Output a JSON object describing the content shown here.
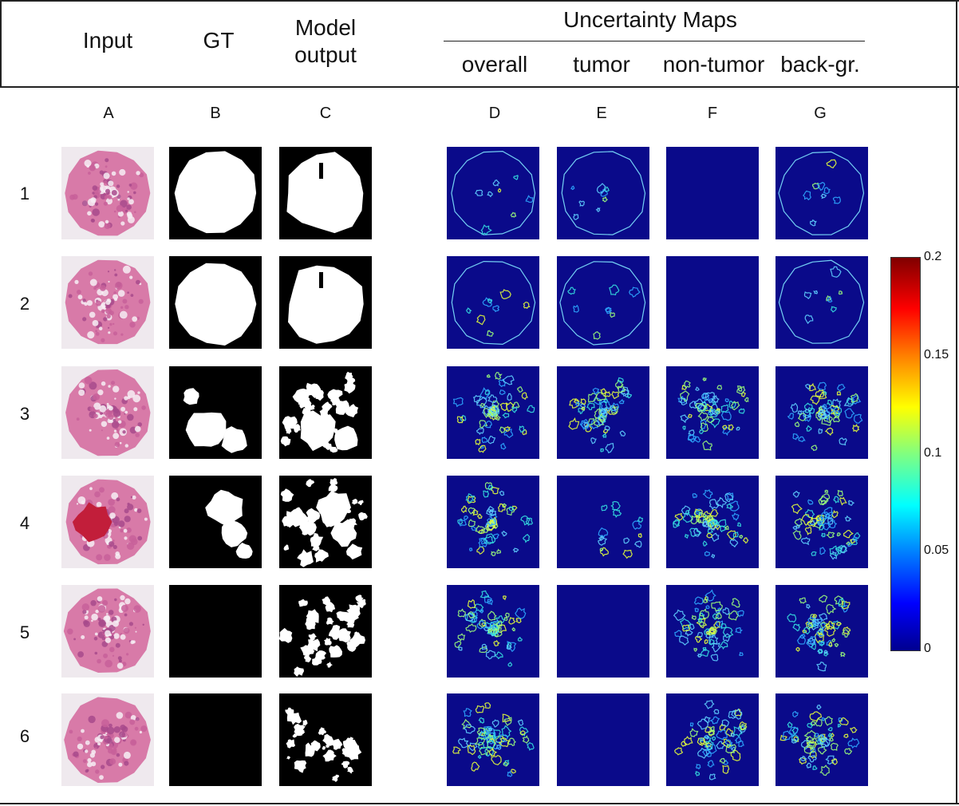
{
  "header": {
    "input": "Input",
    "gt": "GT",
    "model_output": "Model\noutput",
    "uncertainty_maps": "Uncertainty Maps",
    "sub": [
      "overall",
      "tumor",
      "non-tumor",
      "back-gr."
    ]
  },
  "column_letters": [
    "A",
    "B",
    "C",
    "D",
    "E",
    "F",
    "G"
  ],
  "row_numbers": [
    "1",
    "2",
    "3",
    "4",
    "5",
    "6"
  ],
  "colorbar": {
    "ticks": [
      "0.2",
      "0.15",
      "0.1",
      "0.05",
      "0"
    ],
    "min": 0,
    "max": 0.2,
    "colormap": "jet"
  },
  "colors": {
    "uncertainty_bg": "#0a0a8a",
    "he_pink": "#d87aa8",
    "mask_white": "#ffffff",
    "mask_black": "#000000"
  }
}
